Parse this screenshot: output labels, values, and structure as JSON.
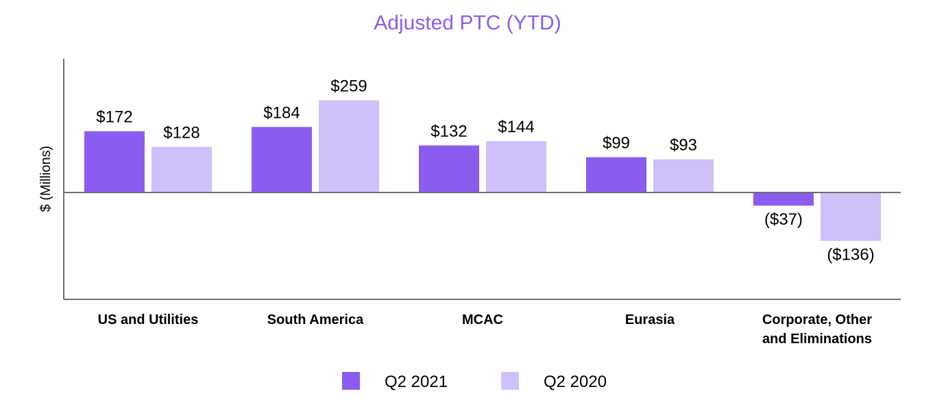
{
  "chart_data": {
    "type": "bar",
    "title": "Adjusted PTC (YTD)",
    "xlabel": "",
    "ylabel": "$ (Millions)",
    "categories": [
      [
        "US and Utilities"
      ],
      [
        "South America"
      ],
      [
        "MCAC"
      ],
      [
        "Eurasia"
      ],
      [
        "Corporate, Other",
        "and Eliminations"
      ]
    ],
    "series": [
      {
        "name": "Q2 2021",
        "color": "#8B5CF0",
        "values": [
          172,
          184,
          132,
          99,
          -37
        ],
        "labels": [
          "$172",
          "$184",
          "$132",
          "$99",
          "($37)"
        ]
      },
      {
        "name": "Q2 2020",
        "color": "#D0C0FA",
        "values": [
          128,
          259,
          144,
          93,
          -136
        ],
        "labels": [
          "$128",
          "$259",
          "$144",
          "$93",
          "($136)"
        ]
      }
    ],
    "ylim": [
      -300,
      370
    ],
    "grid": false,
    "legend": "bottom-center",
    "title_color": "#8B5CF0",
    "axis_color": "#6F6F6F"
  }
}
